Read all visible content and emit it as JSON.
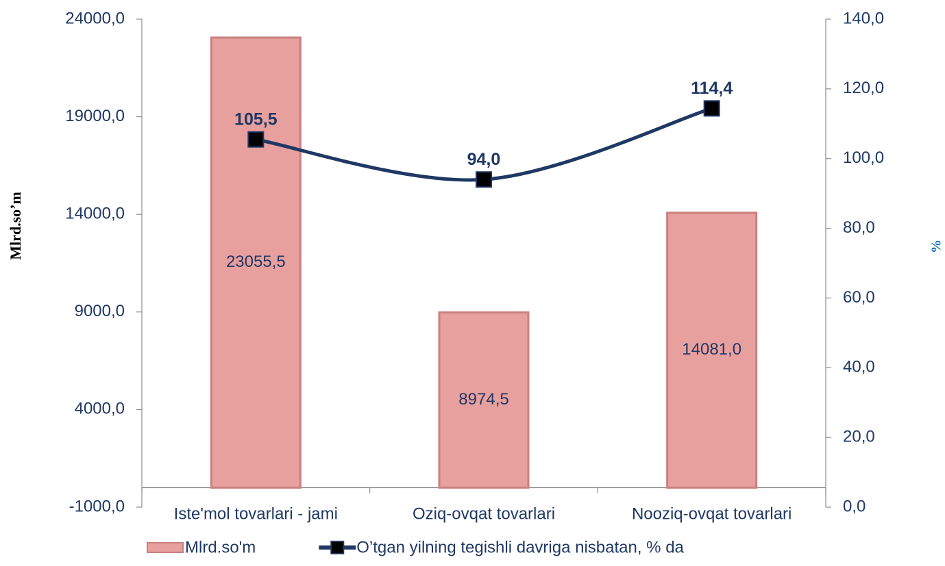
{
  "chart_data": {
    "type": "bar-line",
    "categories": [
      "Iste'mol tovarlari - jami",
      "Oziq-ovqat tovarlari",
      "Nooziq-ovqat tovarlari"
    ],
    "ylabel": "Mlrd.so’m",
    "y2label": "%",
    "ylim": [
      -1000,
      24000
    ],
    "yticks": [
      {
        "value": -1000,
        "label": "-1000,0"
      },
      {
        "value": 4000,
        "label": "4000,0"
      },
      {
        "value": 9000,
        "label": "9000,0"
      },
      {
        "value": 14000,
        "label": "14000,0"
      },
      {
        "value": 19000,
        "label": "19000,0"
      },
      {
        "value": 24000,
        "label": "24000,0"
      }
    ],
    "y2lim": [
      0,
      140
    ],
    "y2ticks": [
      {
        "value": 0,
        "label": "0,0"
      },
      {
        "value": 20,
        "label": "20,0"
      },
      {
        "value": 40,
        "label": "40,0"
      },
      {
        "value": 60,
        "label": "60,0"
      },
      {
        "value": 80,
        "label": "80,0"
      },
      {
        "value": 100,
        "label": "100,0"
      },
      {
        "value": 120,
        "label": "120,0"
      },
      {
        "value": 140,
        "label": "140,0"
      }
    ],
    "series": [
      {
        "name": "Mlrd.so'm",
        "type": "bar",
        "color": "#e8a09f",
        "values": [
          23055.5,
          8974.5,
          14081.0
        ],
        "value_labels": [
          "23055,5",
          "8974,5",
          "14081,0"
        ]
      },
      {
        "name": "O’tgan yilning tegishli davriga nisbatan, % da",
        "type": "line",
        "axis": "y2",
        "color": "#1f3864",
        "values": [
          105.5,
          94.0,
          114.4
        ],
        "value_labels": [
          "105,5",
          "94,0",
          "114,4"
        ]
      }
    ]
  }
}
